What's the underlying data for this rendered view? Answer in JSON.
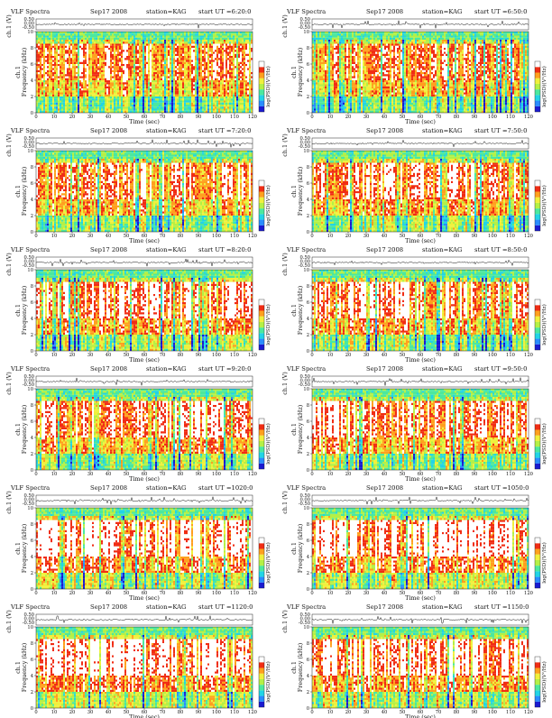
{
  "figure": {
    "panel_title": "VLF Spectra",
    "date": "Sep17 2008",
    "station": "station=KAG",
    "start_prefix": "start  UT =",
    "waveform_ylabel": "ch.1 (V)",
    "freq_ylabel": "Frequency (kHz)",
    "channel_label": "ch.1",
    "time_xlabel": "Time (sec)",
    "colorbar_label": "log(PSD)(V²/Hz)",
    "waveform_ticks": [
      "0.50",
      "0.00",
      "-0.50"
    ],
    "freq_ticks": [
      "0",
      "2",
      "4",
      "6",
      "8",
      "10"
    ],
    "time_ticks": [
      "0",
      "10",
      "20",
      "30",
      "40",
      "50",
      "60",
      "70",
      "80",
      "90",
      "100",
      "110",
      "120"
    ]
  },
  "colors": {
    "psd_scale": [
      "#1a1ad0",
      "#2a8cff",
      "#22d4e6",
      "#4ce89e",
      "#b4f046",
      "#f0f03c",
      "#ffa01e",
      "#f02d14",
      "#ffffff"
    ],
    "waveform_line": "#111111",
    "waveform_bg": "#ffffff"
  },
  "chart_data": [
    {
      "type": "heatmap",
      "start_ut": "6:20:0",
      "intensity": 0.42,
      "x_range": [
        0,
        120
      ],
      "freq_range_khz": [
        0,
        10
      ],
      "colorbar": "log(PSD)(V²/Hz)"
    },
    {
      "type": "heatmap",
      "start_ut": "6:50:0",
      "intensity": 0.4,
      "x_range": [
        0,
        120
      ],
      "freq_range_khz": [
        0,
        10
      ],
      "colorbar": "log(PSD)(V²/Hz)"
    },
    {
      "type": "heatmap",
      "start_ut": "7:20:0",
      "intensity": 0.55,
      "x_range": [
        0,
        120
      ],
      "freq_range_khz": [
        0,
        10
      ],
      "colorbar": "log(PSD)(V²/Hz)"
    },
    {
      "type": "heatmap",
      "start_ut": "7:50:0",
      "intensity": 0.57,
      "x_range": [
        0,
        120
      ],
      "freq_range_khz": [
        0,
        10
      ],
      "colorbar": "log(PSD)(V²/Hz)"
    },
    {
      "type": "heatmap",
      "start_ut": "8:20:0",
      "intensity": 0.66,
      "x_range": [
        0,
        120
      ],
      "freq_range_khz": [
        0,
        10
      ],
      "colorbar": "log(PSD)(V²/Hz)"
    },
    {
      "type": "heatmap",
      "start_ut": "8:50:0",
      "intensity": 0.68,
      "x_range": [
        0,
        120
      ],
      "freq_range_khz": [
        0,
        10
      ],
      "colorbar": "log(PSD)(V²/Hz)"
    },
    {
      "type": "heatmap",
      "start_ut": "9:20:0",
      "intensity": 0.72,
      "x_range": [
        0,
        120
      ],
      "freq_range_khz": [
        0,
        10
      ],
      "colorbar": "log(PSD)(V²/Hz)"
    },
    {
      "type": "heatmap",
      "start_ut": "9:50:0",
      "intensity": 0.76,
      "x_range": [
        0,
        120
      ],
      "freq_range_khz": [
        0,
        10
      ],
      "colorbar": "log(PSD)(V²/Hz)"
    },
    {
      "type": "heatmap",
      "start_ut": "1020:0",
      "intensity": 0.9,
      "x_range": [
        0,
        120
      ],
      "freq_range_khz": [
        0,
        10
      ],
      "colorbar": "log(PSD)(V²/Hz)"
    },
    {
      "type": "heatmap",
      "start_ut": "1050:0",
      "intensity": 0.88,
      "x_range": [
        0,
        120
      ],
      "freq_range_khz": [
        0,
        10
      ],
      "colorbar": "log(PSD)(V²/Hz)"
    },
    {
      "type": "heatmap",
      "start_ut": "1120:0",
      "intensity": 0.86,
      "x_range": [
        0,
        120
      ],
      "freq_range_khz": [
        0,
        10
      ],
      "colorbar": "log(PSD)(V²/Hz)"
    },
    {
      "type": "heatmap",
      "start_ut": "1150:0",
      "intensity": 0.84,
      "x_range": [
        0,
        120
      ],
      "freq_range_khz": [
        0,
        10
      ],
      "colorbar": "log(PSD)(V²/Hz)"
    }
  ]
}
